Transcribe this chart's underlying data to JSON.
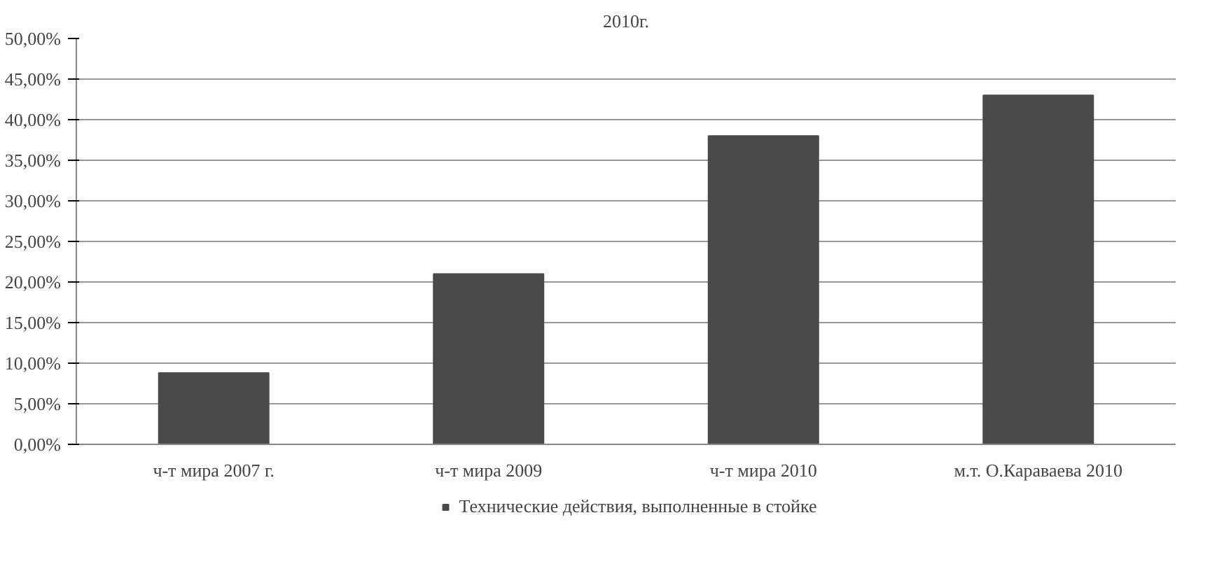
{
  "chart_data": {
    "type": "bar",
    "title": "2010г.",
    "categories": [
      "ч-т мира 2007 г.",
      "ч-т мира 2009",
      "ч-т мира 2010",
      "м.т. О.Караваева 2010"
    ],
    "series": [
      {
        "name": "Технические действия, выполненные в стойке",
        "color": "#4a4a4a",
        "values": [
          8.8,
          21.0,
          38.0,
          43.0
        ]
      }
    ],
    "ylim": [
      0,
      50
    ],
    "yticks": [
      {
        "value": 0,
        "label": "0,00%"
      },
      {
        "value": 5,
        "label": "5,00%"
      },
      {
        "value": 10,
        "label": "10,00%"
      },
      {
        "value": 15,
        "label": "15,00%"
      },
      {
        "value": 20,
        "label": "20,00%"
      },
      {
        "value": 25,
        "label": "25,00%"
      },
      {
        "value": 30,
        "label": "30,00%"
      },
      {
        "value": 35,
        "label": "35,00%"
      },
      {
        "value": 40,
        "label": "40,00%"
      },
      {
        "value": 45,
        "label": "45,00%"
      },
      {
        "value": 50,
        "label": "50,00%"
      }
    ],
    "grid": "y",
    "legend": "bottom"
  }
}
